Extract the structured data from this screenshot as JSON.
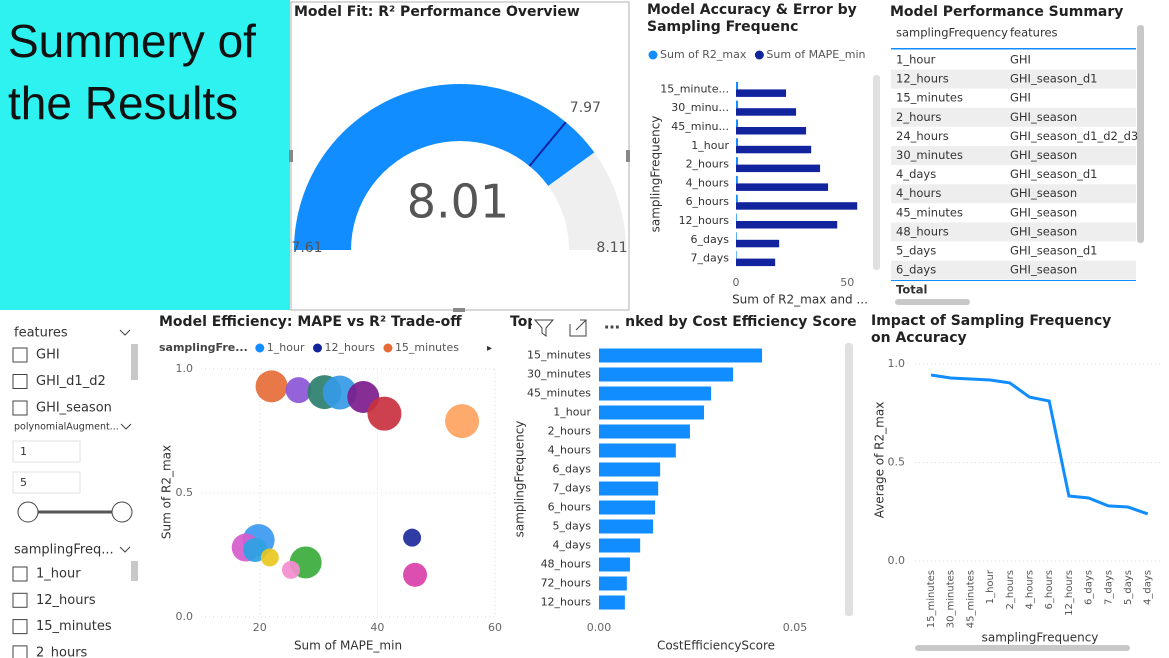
{
  "title_box": [
    "Summery of",
    "the Results"
  ],
  "chart_data": [
    {
      "type": "gauge",
      "title": "Model Fit: R² Performance Overview",
      "value": 8.01,
      "min": 7.61,
      "max": 8.11,
      "target": 7.97,
      "color": "#118dff",
      "target_color": "#12239e"
    },
    {
      "type": "hbar",
      "title": "Model Accuracy & Error by Sampling Frequenc",
      "categories": [
        "15_minute...",
        "30_minu...",
        "45_minu...",
        "1_hour",
        "2_hours",
        "4_hours",
        "6_hours",
        "12_hours",
        "6_days",
        "7_days"
      ],
      "series": [
        {
          "name": "Sum of R2_max",
          "color": "#118dff",
          "values": [
            0.94,
            0.93,
            0.92,
            0.92,
            0.9,
            0.83,
            0.81,
            0.33,
            0.32,
            0.28
          ]
        },
        {
          "name": "Sum of MAPE_min",
          "color": "#12239e",
          "values": [
            22.5,
            27,
            31.5,
            33.8,
            37.8,
            41.4,
            54.5,
            45.5,
            19.4,
            17.6
          ]
        }
      ],
      "xlim": [
        0,
        58
      ],
      "xticks": [
        0,
        50
      ],
      "xlabel": "Sum of R2_max and ...",
      "ylabel": "samplingFrequency"
    },
    {
      "type": "scatter",
      "title": "Model Efficiency: MAPE vs R² Trade-off",
      "legend_title": "samplingFre...",
      "legend": [
        {
          "name": "1_hour",
          "color": "#118dff"
        },
        {
          "name": "12_hours",
          "color": "#12239e"
        },
        {
          "name": "15_minutes",
          "color": "#e66c37"
        }
      ],
      "x": [
        22.0,
        26.6,
        31.0,
        33.6,
        37.6,
        41.2,
        54.4,
        19.8,
        17.6,
        19.2,
        21.7,
        27.8,
        25.3,
        45.9,
        46.4
      ],
      "values": [
        0.93,
        0.915,
        0.907,
        0.905,
        0.887,
        0.82,
        0.79,
        0.31,
        0.28,
        0.27,
        0.24,
        0.22,
        0.19,
        0.32,
        0.17
      ],
      "sizes": [
        16,
        13,
        17,
        17,
        16,
        17,
        17,
        16,
        14,
        12,
        9,
        16,
        9,
        9,
        12
      ],
      "colors": [
        "#e66c37",
        "#8b55d6",
        "#2d7f6e",
        "#3599e6",
        "#7c1c8c",
        "#c8313e",
        "#fda360",
        "#3b99f0",
        "#d65ccd",
        "#2aa3e2",
        "#e8c71f",
        "#3bab3b",
        "#f58ccf",
        "#1e2a9c",
        "#d93fa8"
      ],
      "xlim": [
        10,
        60
      ],
      "xticks": [
        20,
        40,
        60
      ],
      "ylim": [
        0,
        1
      ],
      "yticks": [
        {
          "value": 0,
          "label": "0.0"
        },
        {
          "value": 0.5,
          "label": "0.5"
        },
        {
          "value": 1,
          "label": "1.0"
        }
      ],
      "xlabel": "Sum of MAPE_min",
      "ylabel": "Sum of R2_max",
      "grid": true
    },
    {
      "type": "hbar",
      "title_start": "Top",
      "title_end": "d Ranked by Cost Efficiency Score",
      "categories": [
        "15_minutes",
        "30_minutes",
        "45_minutes",
        "1_hour",
        "2_hours",
        "4_hours",
        "6_days",
        "7_days",
        "6_hours",
        "5_days",
        "4_days",
        "48_hours",
        "72_hours",
        "12_hours"
      ],
      "series": [
        {
          "color": "#118dff",
          "values": [
            0.0416,
            0.0342,
            0.0286,
            0.0268,
            0.0232,
            0.0196,
            0.0156,
            0.0151,
            0.0143,
            0.0138,
            0.0105,
            0.0079,
            0.0071,
            0.0066
          ]
        }
      ],
      "xlim": [
        0,
        0.062
      ],
      "xticks": [
        {
          "value": 0,
          "label": "0.00"
        },
        {
          "value": 0.05,
          "label": "0.05"
        }
      ],
      "xlabel": "CostEfficiencyScore",
      "ylabel": "samplingFrequency"
    },
    {
      "type": "line",
      "title": "Impact of Sampling Frequency on Accuracy",
      "categories": [
        "15_minutes",
        "30_minutes",
        "45_minutes",
        "1_hour",
        "2_hours",
        "4_hours",
        "6_hours",
        "12_hours",
        "6_days",
        "7_days",
        "5_days",
        "4_days"
      ],
      "values": [
        0.944,
        0.929,
        0.924,
        0.919,
        0.904,
        0.832,
        0.812,
        0.33,
        0.32,
        0.28,
        0.274,
        0.239
      ],
      "color": "#118dff",
      "ylim": [
        0,
        1
      ],
      "yticks": [
        {
          "value": 0,
          "label": "0.0"
        },
        {
          "value": 0.5,
          "label": "0.5"
        },
        {
          "value": 1,
          "label": "1.0"
        }
      ],
      "xlabel": "samplingFrequency",
      "ylabel": "Average of R2_max",
      "grid": true
    }
  ],
  "table": {
    "title": "Model Performance Summary",
    "columns": [
      "samplingFrequency",
      "features"
    ],
    "rows": [
      [
        "1_hour",
        "GHI"
      ],
      [
        "12_hours",
        "GHI_season_d1"
      ],
      [
        "15_minutes",
        "GHI"
      ],
      [
        "2_hours",
        "GHI_season"
      ],
      [
        "24_hours",
        "GHI_season_d1_d2_d3"
      ],
      [
        "30_minutes",
        "GHI_season"
      ],
      [
        "4_days",
        "GHI_season_d1"
      ],
      [
        "4_hours",
        "GHI_season"
      ],
      [
        "45_minutes",
        "GHI_season"
      ],
      [
        "48_hours",
        "GHI_season"
      ],
      [
        "5_days",
        "GHI_season_d1"
      ],
      [
        "6_days",
        "GHI_season"
      ]
    ],
    "total": "Total"
  },
  "slicers": [
    {
      "title": "features",
      "items": [
        "GHI",
        "GHI_d1_d2",
        "GHI_season"
      ]
    },
    {
      "title": "polynomialAugment...",
      "range": [
        1,
        5
      ]
    },
    {
      "title": "samplingFreq...",
      "items": [
        "1_hour",
        "12_hours",
        "15_minutes",
        "2_hours"
      ]
    }
  ]
}
